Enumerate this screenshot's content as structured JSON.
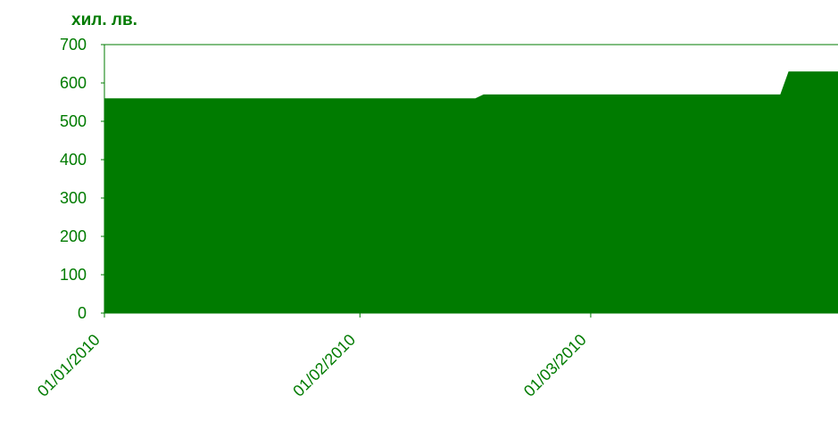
{
  "colors": {
    "fill": "#007b00",
    "axis": "#007b00",
    "text": "#007b00"
  },
  "chart_data": {
    "type": "area",
    "unit_label": "хил. лв.",
    "title": "",
    "xlabel": "",
    "ylabel": "",
    "ylim": [
      0,
      700
    ],
    "yticks": [
      0,
      100,
      200,
      300,
      400,
      500,
      600,
      700
    ],
    "xlim": [
      "2010-01-01",
      "2010-03-31"
    ],
    "xticks": [
      "01/01/2010",
      "01/02/2010",
      "01/03/2010"
    ],
    "grid": false,
    "legend": "none",
    "series": [
      {
        "x": [
          "2010-01-01",
          "2010-02-15",
          "2010-02-16",
          "2010-03-24",
          "2010-03-25",
          "2010-03-31"
        ],
        "values": [
          560,
          560,
          570,
          570,
          630,
          630
        ]
      }
    ]
  }
}
